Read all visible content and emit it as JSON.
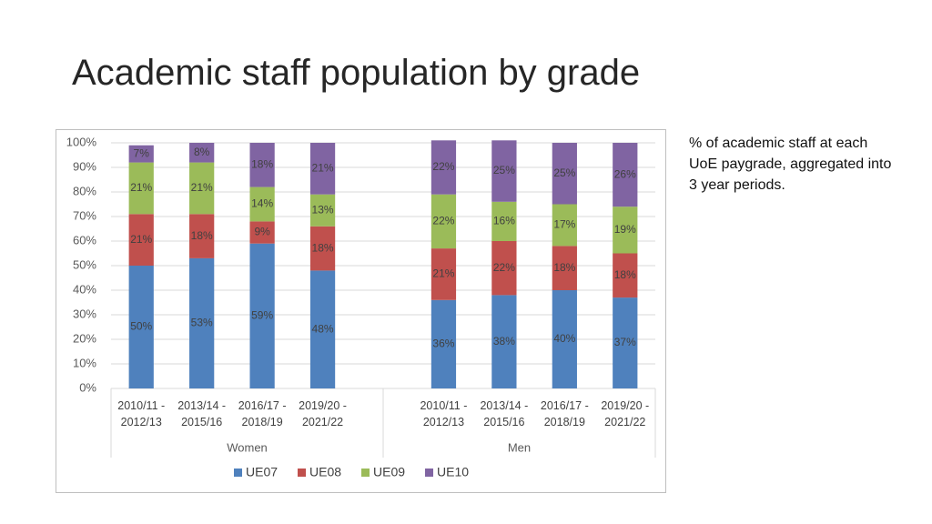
{
  "title": "Academic staff population by grade",
  "note": "% of academic staff at each UoE paygrade, aggregated into 3 year periods.",
  "chart_data": {
    "type": "bar",
    "stacked": true,
    "groups": [
      {
        "name": "Women",
        "categories": [
          "2010/11 - 2012/13",
          "2013/14 - 2015/16",
          "2016/17 - 2018/19",
          "2019/20 - 2021/22"
        ]
      },
      {
        "name": "Men",
        "categories": [
          "2010/11 - 2012/13",
          "2013/14 - 2015/16",
          "2016/17 - 2018/19",
          "2019/20 - 2021/22"
        ]
      }
    ],
    "series": [
      {
        "name": "UE07",
        "color": "#4f81bd",
        "values": [
          50,
          53,
          59,
          48,
          36,
          38,
          40,
          37
        ],
        "value_labels": [
          "50%",
          "53%",
          "59%",
          "48%",
          "36%",
          "38%",
          "40%",
          "37%"
        ]
      },
      {
        "name": "UE08",
        "color": "#c0504d",
        "values": [
          21,
          18,
          9,
          18,
          21,
          22,
          18,
          18
        ],
        "value_labels": [
          "21%",
          "18%",
          "9%",
          "18%",
          "21%",
          "22%",
          "18%",
          "18%"
        ]
      },
      {
        "name": "UE09",
        "color": "#9bbb59",
        "values": [
          21,
          21,
          14,
          13,
          22,
          16,
          17,
          19
        ],
        "value_labels": [
          "21%",
          "21%",
          "14%",
          "13%",
          "22%",
          "16%",
          "17%",
          "19%"
        ]
      },
      {
        "name": "UE10",
        "color": "#8064a2",
        "values": [
          7,
          8,
          18,
          21,
          22,
          25,
          25,
          26
        ],
        "value_labels": [
          "7%",
          "8%",
          "18%",
          "21%",
          "22%",
          "25%",
          "25%",
          "26%"
        ]
      }
    ],
    "ylim": [
      0,
      100
    ],
    "yticks": [
      {
        "value": 0,
        "label": "0%"
      },
      {
        "value": 10,
        "label": "10%"
      },
      {
        "value": 20,
        "label": "20%"
      },
      {
        "value": 30,
        "label": "30%"
      },
      {
        "value": 40,
        "label": "40%"
      },
      {
        "value": 50,
        "label": "50%"
      },
      {
        "value": 60,
        "label": "60%"
      },
      {
        "value": 70,
        "label": "70%"
      },
      {
        "value": 80,
        "label": "80%"
      },
      {
        "value": 90,
        "label": "90%"
      },
      {
        "value": 100,
        "label": "100%"
      }
    ],
    "grid": true,
    "legend": "bottom"
  }
}
